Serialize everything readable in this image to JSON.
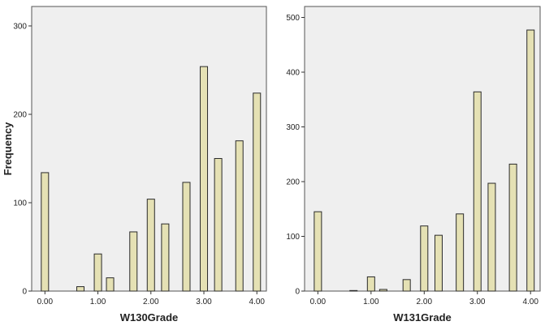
{
  "chart_data": [
    {
      "type": "bar",
      "xlabel": "W130Grade",
      "ylabel": "Frequency",
      "xlim": [
        -0.25,
        4.18
      ],
      "ylim": [
        0,
        322
      ],
      "xticks": [
        0,
        1,
        2,
        3,
        4
      ],
      "xtick_labels": [
        "0.00",
        "1.00",
        "2.00",
        "3.00",
        "4.00"
      ],
      "yticks": [
        0,
        100,
        200,
        300
      ],
      "ytick_labels": [
        "0",
        "100",
        "200",
        "300"
      ],
      "grid": false,
      "x": [
        0.0,
        0.67,
        1.0,
        1.23,
        1.67,
        2.0,
        2.27,
        2.67,
        3.0,
        3.27,
        3.67,
        4.0
      ],
      "values": [
        134,
        5,
        42,
        15,
        67,
        104,
        76,
        123,
        254,
        150,
        170,
        224
      ],
      "colors": {
        "bar": "#e5e1b4",
        "bar_edge": "#2a2a2a",
        "plot_bg": "#efefef"
      }
    },
    {
      "type": "bar",
      "xlabel": "W131Grade",
      "ylabel": "",
      "xlim": [
        -0.25,
        4.18
      ],
      "ylim": [
        0,
        520
      ],
      "xticks": [
        0,
        1,
        2,
        3,
        4
      ],
      "xtick_labels": [
        "0.00",
        "1.00",
        "2.00",
        "3.00",
        "4.00"
      ],
      "yticks": [
        0,
        100,
        200,
        300,
        400,
        500
      ],
      "ytick_labels": [
        "0",
        "100",
        "200",
        "300",
        "400",
        "500"
      ],
      "grid": false,
      "x": [
        0.0,
        0.67,
        1.0,
        1.23,
        1.67,
        2.0,
        2.27,
        2.67,
        3.0,
        3.27,
        3.67,
        4.0
      ],
      "values": [
        145,
        1,
        26,
        3,
        21,
        119,
        102,
        141,
        364,
        197,
        232,
        477
      ],
      "colors": {
        "bar": "#e5e1b4",
        "bar_edge": "#2a2a2a",
        "plot_bg": "#efefef"
      }
    }
  ]
}
